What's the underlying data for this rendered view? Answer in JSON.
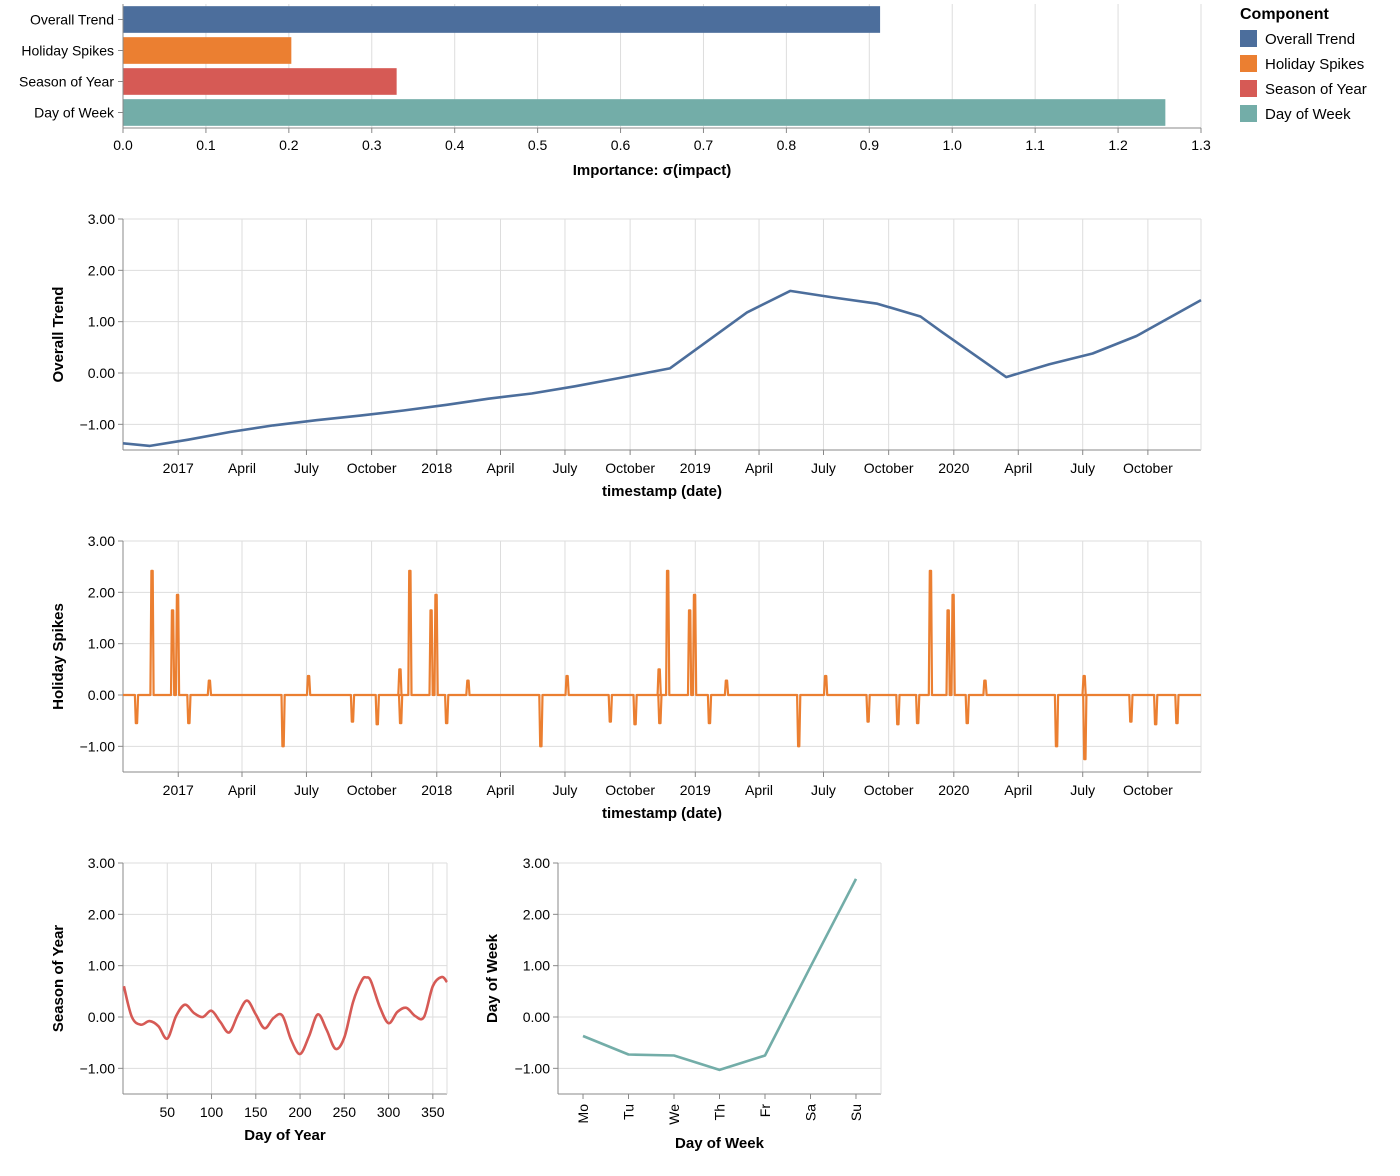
{
  "colors": {
    "overall_trend": "#4c6e9c",
    "holiday_spikes": "#eb7f31",
    "season_of_year": "#d65a55",
    "day_of_week": "#73ada8"
  },
  "legend": {
    "title": "Component",
    "items": [
      {
        "label": "Overall Trend",
        "color": "#4c6e9c"
      },
      {
        "label": "Holiday Spikes",
        "color": "#eb7f31"
      },
      {
        "label": "Season of Year",
        "color": "#d65a55"
      },
      {
        "label": "Day of Week",
        "color": "#73ada8"
      }
    ]
  },
  "chart_data": [
    {
      "id": "importance",
      "type": "bar",
      "orientation": "horizontal",
      "categories": [
        "Overall Trend",
        "Holiday Spikes",
        "Season of Year",
        "Day of Week"
      ],
      "values": [
        0.913,
        0.203,
        0.33,
        1.257
      ],
      "xlabel": "Importance: σ(impact)",
      "ylabel": "",
      "xlim": [
        0,
        1.3
      ],
      "xticks": [
        "0.0",
        "0.1",
        "0.2",
        "0.3",
        "0.4",
        "0.5",
        "0.6",
        "0.7",
        "0.8",
        "0.9",
        "1.0",
        "1.1",
        "1.2",
        "1.3"
      ],
      "grid": true,
      "legend": "right"
    },
    {
      "id": "trend",
      "type": "line",
      "x": [
        "2016-10-15",
        "2016-11-22",
        "2017-01-15",
        "2017-03-15",
        "2017-05-15",
        "2017-07-15",
        "2017-09-15",
        "2017-11-15",
        "2018-01-15",
        "2018-03-15",
        "2018-05-15",
        "2018-07-15",
        "2018-09-15",
        "2018-11-26",
        "2019-03-15",
        "2019-05-15",
        "2019-07-15",
        "2019-09-15",
        "2019-11-15",
        "2019-12-15",
        "2020-03-15",
        "2020-05-15",
        "2020-07-15",
        "2020-09-15",
        "2020-12-15"
      ],
      "series": [
        {
          "name": "Overall Trend",
          "values": [
            -1.37,
            -1.42,
            -1.3,
            -1.15,
            -1.02,
            -0.92,
            -0.83,
            -0.73,
            -0.62,
            -0.5,
            -0.4,
            -0.26,
            -0.1,
            0.09,
            1.18,
            1.6,
            1.47,
            1.35,
            1.1,
            0.8,
            -0.08,
            0.17,
            0.38,
            0.72,
            1.42
          ]
        }
      ],
      "xlabel": "timestamp (date)",
      "ylabel": "Overall Trend",
      "xlim": [
        "2016-10-15",
        "2020-12-15"
      ],
      "ylim": [
        -1.5,
        3.0
      ],
      "yticks": [
        "−1.00",
        "0.00",
        "1.00",
        "2.00",
        "3.00"
      ],
      "xticks": [
        "2017",
        "April",
        "July",
        "October",
        "2018",
        "April",
        "July",
        "October",
        "2019",
        "April",
        "July",
        "October",
        "2020",
        "April",
        "July",
        "October"
      ],
      "grid": true
    },
    {
      "id": "holidays",
      "type": "line",
      "baseline": 0,
      "x": [
        "2016-11-03",
        "2016-11-25",
        "2016-12-24",
        "2016-12-31",
        "2017-01-16",
        "2017-02-14",
        "2017-05-29",
        "2017-07-04",
        "2017-09-04",
        "2017-10-09",
        "2017-11-10",
        "2017-11-11",
        "2017-11-24",
        "2017-12-24",
        "2017-12-31",
        "2018-01-15",
        "2018-02-14",
        "2018-05-28",
        "2018-07-04",
        "2018-09-03",
        "2018-10-08",
        "2018-11-11",
        "2018-11-12",
        "2018-11-23",
        "2018-12-24",
        "2018-12-31",
        "2019-01-21",
        "2019-02-14",
        "2019-05-27",
        "2019-07-04",
        "2019-09-02",
        "2019-10-14",
        "2019-11-11",
        "2019-11-29",
        "2019-12-24",
        "2019-12-31",
        "2020-01-20",
        "2020-02-14",
        "2020-05-25",
        "2020-07-03",
        "2020-07-04",
        "2020-09-07",
        "2020-10-12",
        "2020-11-11"
      ],
      "series": [
        {
          "name": "Holiday Spikes",
          "values": [
            -0.55,
            2.42,
            1.65,
            1.95,
            -0.55,
            0.28,
            -1.0,
            0.37,
            -0.52,
            -0.57,
            0.5,
            -0.55,
            2.42,
            1.65,
            1.95,
            -0.55,
            0.28,
            -1.0,
            0.37,
            -0.52,
            -0.57,
            0.5,
            -0.55,
            2.42,
            1.65,
            1.95,
            -0.55,
            0.28,
            -1.0,
            0.37,
            -0.52,
            -0.57,
            -0.55,
            2.42,
            1.65,
            1.95,
            -0.55,
            0.28,
            -1.0,
            0.37,
            -1.25,
            -0.52,
            -0.57,
            -0.55
          ]
        }
      ],
      "xlabel": "timestamp (date)",
      "ylabel": "Holiday Spikes",
      "xlim": [
        "2016-10-15",
        "2020-12-15"
      ],
      "ylim": [
        -1.5,
        3.0
      ],
      "yticks": [
        "−1.00",
        "0.00",
        "1.00",
        "2.00",
        "3.00"
      ],
      "xticks": [
        "2017",
        "April",
        "July",
        "October",
        "2018",
        "April",
        "July",
        "October",
        "2019",
        "April",
        "July",
        "October",
        "2020",
        "April",
        "July",
        "October"
      ],
      "grid": true
    },
    {
      "id": "season",
      "type": "line",
      "x": [
        1,
        10,
        20,
        30,
        40,
        50,
        60,
        70,
        80,
        90,
        100,
        110,
        120,
        130,
        140,
        150,
        160,
        170,
        180,
        190,
        200,
        210,
        220,
        230,
        240,
        250,
        260,
        270,
        275,
        280,
        290,
        300,
        310,
        320,
        330,
        340,
        350,
        360,
        366
      ],
      "series": [
        {
          "name": "Season of Year",
          "values": [
            0.6,
            0.0,
            -0.15,
            -0.08,
            -0.18,
            -0.42,
            0.02,
            0.24,
            0.08,
            0.0,
            0.12,
            -0.1,
            -0.3,
            0.05,
            0.32,
            0.05,
            -0.22,
            -0.02,
            0.03,
            -0.45,
            -0.72,
            -0.38,
            0.05,
            -0.25,
            -0.62,
            -0.4,
            0.3,
            0.72,
            0.77,
            0.7,
            0.2,
            -0.12,
            0.1,
            0.18,
            0.02,
            0.0,
            0.6,
            0.78,
            0.68
          ]
        }
      ],
      "xlabel": "Day of Year",
      "ylabel": "Season of Year",
      "xlim": [
        0,
        366
      ],
      "ylim": [
        -1.5,
        3.0
      ],
      "xticks": [
        "50",
        "100",
        "150",
        "200",
        "250",
        "300",
        "350"
      ],
      "yticks": [
        "−1.00",
        "0.00",
        "1.00",
        "2.00",
        "3.00"
      ],
      "grid": true
    },
    {
      "id": "dow",
      "type": "line",
      "categories": [
        "Mo",
        "Tu",
        "We",
        "Th",
        "Fr",
        "Sa",
        "Su"
      ],
      "series": [
        {
          "name": "Day of Week",
          "values": [
            -0.37,
            -0.73,
            -0.75,
            -1.03,
            -0.75,
            0.98,
            2.69
          ]
        }
      ],
      "xlabel": "Day of Week",
      "ylabel": "Day of Week",
      "ylim": [
        -1.5,
        3.0
      ],
      "yticks": [
        "−1.00",
        "0.00",
        "1.00",
        "2.00",
        "3.00"
      ],
      "grid": true
    }
  ]
}
